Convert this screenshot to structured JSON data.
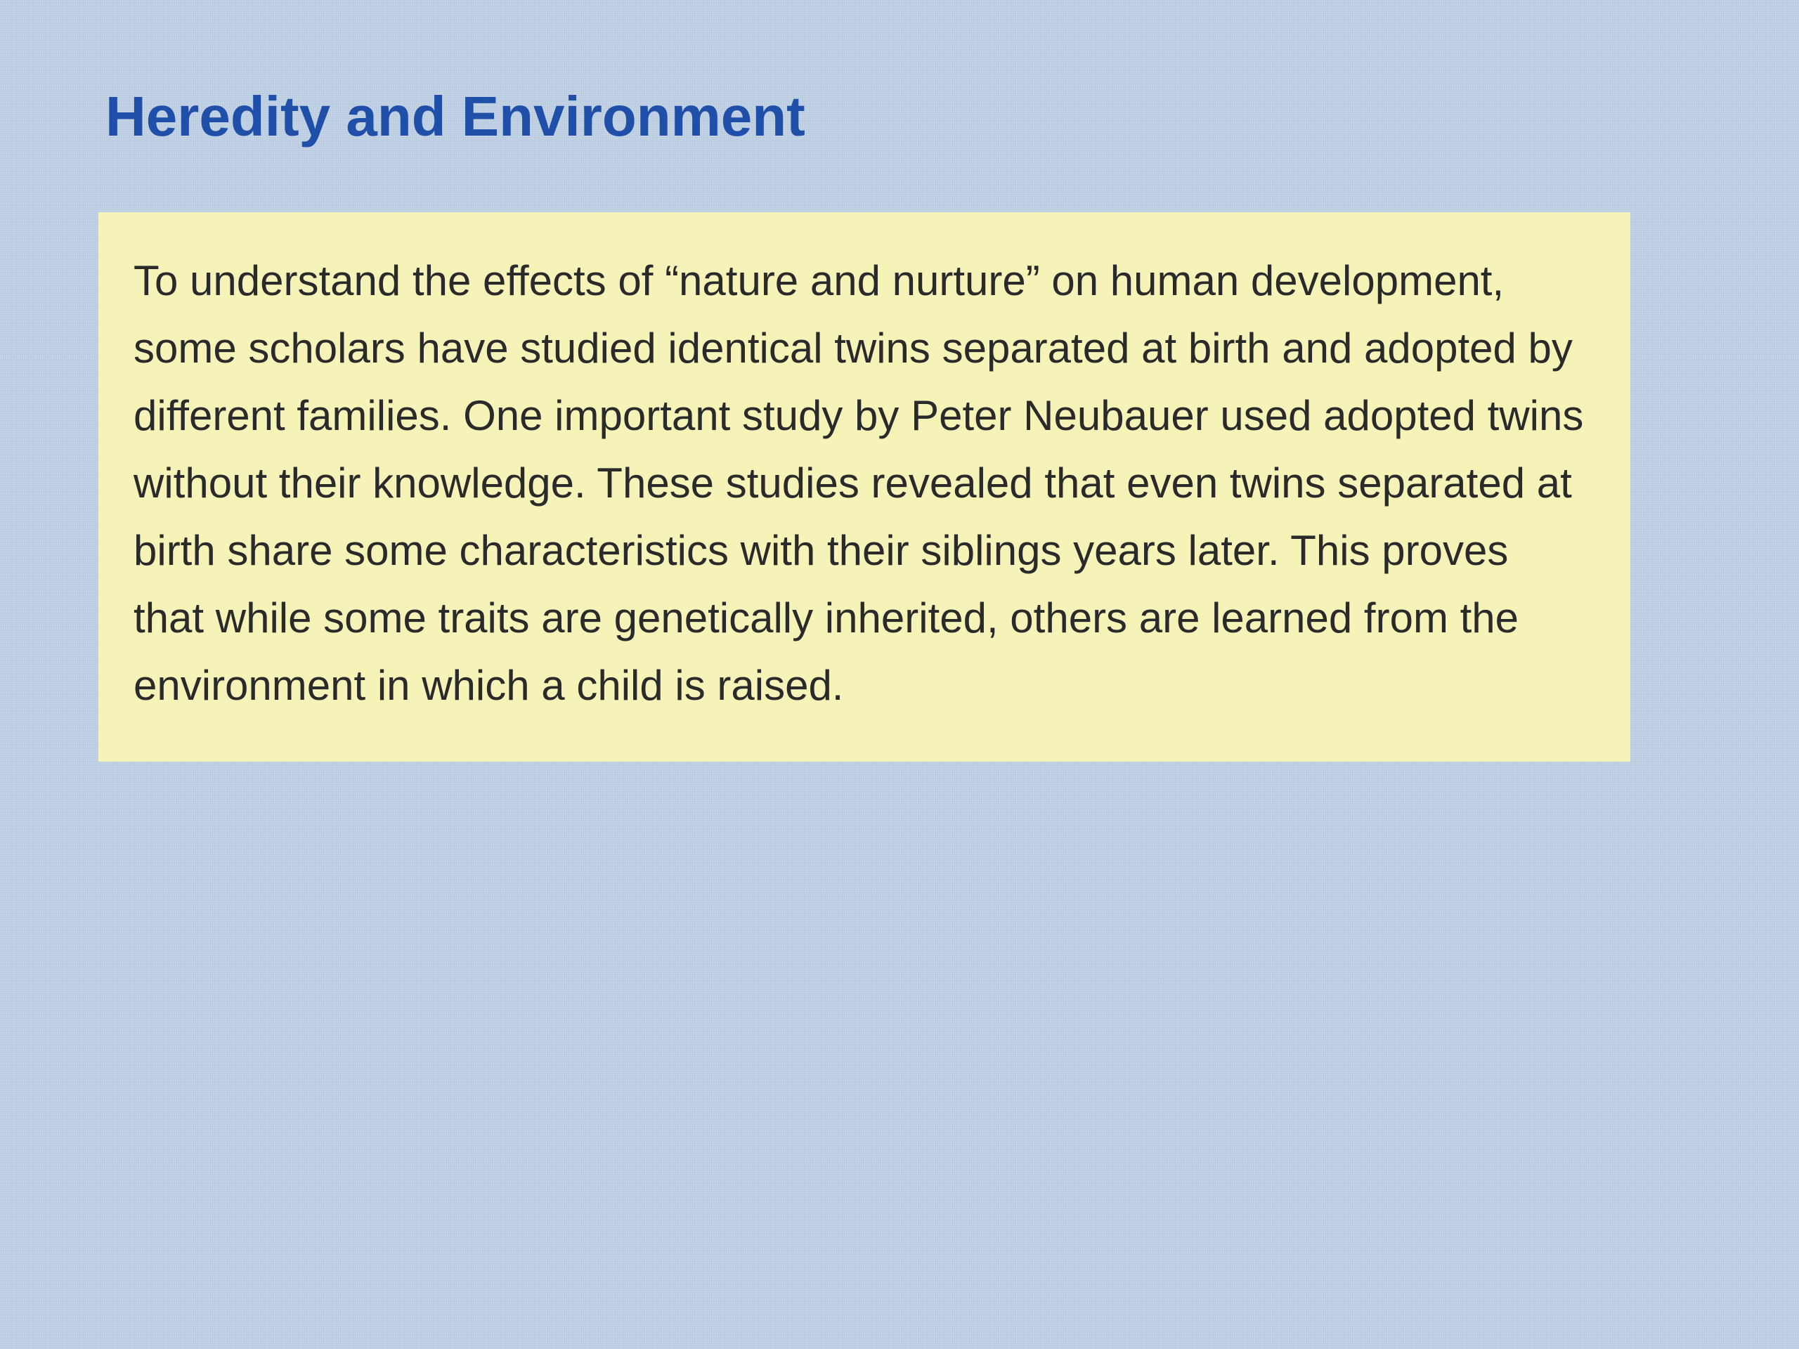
{
  "slide": {
    "title": "Heredity and Environment",
    "body_text": "To understand the effects of “nature and nurture” on human development, some scholars have studied identical twins separated at birth and adopted by different families. One important study by Peter Neubauer used adopted twins without their knowledge. These studies revealed that even twins separated at birth share some characteristics with their siblings years later. This proves that while some traits are genetically inherited, others are learned from the environment in which a child is raised."
  },
  "styling": {
    "background_color": "#b8cae0",
    "title_color": "#1f4fa8",
    "title_fontsize": 80,
    "title_fontweight": "bold",
    "content_box_background": "#f5f3b8",
    "body_text_color": "#2a2a2a",
    "body_fontsize": 60,
    "body_lineheight": 1.6,
    "slide_width": 2560,
    "slide_height": 1920,
    "padding_top": 120,
    "padding_sides": 140,
    "content_box_width": 2180,
    "background_pattern": "fine-grid"
  }
}
